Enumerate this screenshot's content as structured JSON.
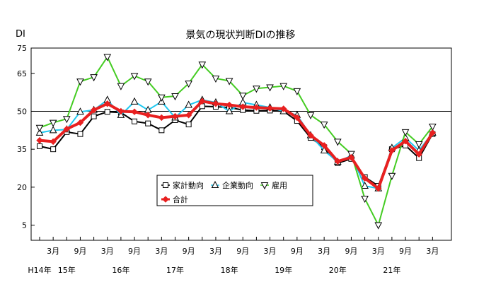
{
  "chart_data": {
    "type": "line",
    "title": "景気の現状判断DIの推移",
    "ylabel": "DI",
    "ylim": [
      -1,
      75
    ],
    "yticks": [
      5,
      20,
      35,
      50,
      65,
      75
    ],
    "reference_line": 50,
    "grid": false,
    "x_count": 30,
    "x_month_labels": [
      {
        "i": 1,
        "text": "3月"
      },
      {
        "i": 3,
        "text": "9月"
      },
      {
        "i": 5,
        "text": "3月"
      },
      {
        "i": 7,
        "text": "9月"
      },
      {
        "i": 9,
        "text": "3月"
      },
      {
        "i": 11,
        "text": "9月"
      },
      {
        "i": 13,
        "text": "3月"
      },
      {
        "i": 15,
        "text": "9月"
      },
      {
        "i": 17,
        "text": "3月"
      },
      {
        "i": 19,
        "text": "9月"
      },
      {
        "i": 21,
        "text": "3月"
      },
      {
        "i": 23,
        "text": "9月"
      },
      {
        "i": 25,
        "text": "3月"
      },
      {
        "i": 27,
        "text": "9月"
      },
      {
        "i": 29,
        "text": "3月"
      }
    ],
    "x_year_labels": [
      {
        "i": 0,
        "text": "H14年"
      },
      {
        "i": 2,
        "text": "15年"
      },
      {
        "i": 6,
        "text": "16年"
      },
      {
        "i": 10,
        "text": "17年"
      },
      {
        "i": 14,
        "text": "18年"
      },
      {
        "i": 18,
        "text": "19年"
      },
      {
        "i": 22,
        "text": "20年"
      },
      {
        "i": 26,
        "text": "21年"
      }
    ],
    "legend_placement": "center",
    "series": [
      {
        "name": "家計動向",
        "color": "#000000",
        "marker": "square",
        "values": [
          36.2,
          35.0,
          41.8,
          41.0,
          48.0,
          49.8,
          49.5,
          46.0,
          45.2,
          42.5,
          46.5,
          44.8,
          52.0,
          51.8,
          51.5,
          50.5,
          50.2,
          50.3,
          50.0,
          46.2,
          39.5,
          35.8,
          29.5,
          31.2,
          24.0,
          20.5,
          35.0,
          36.5,
          31.5,
          41.0
        ]
      },
      {
        "name": "企業動向",
        "color": "#1ec8f0",
        "marker": "triangle-up",
        "values": [
          41.5,
          42.5,
          42.8,
          49.8,
          50.5,
          54.5,
          48.5,
          53.8,
          50.5,
          53.8,
          47.5,
          52.5,
          54.5,
          53.5,
          50.0,
          53.5,
          52.5,
          51.5,
          50.0,
          48.5,
          40.5,
          34.5,
          30.0,
          32.5,
          20.5,
          19.5,
          35.5,
          39.5,
          34.5,
          41.5
        ]
      },
      {
        "name": "雇用",
        "color": "#44cc22",
        "marker": "triangle-down",
        "values": [
          43.5,
          45.5,
          47.0,
          61.8,
          63.5,
          71.5,
          60.0,
          64.0,
          61.8,
          55.5,
          56.0,
          61.0,
          68.5,
          63.0,
          62.0,
          56.2,
          59.0,
          59.5,
          60.0,
          58.0,
          48.5,
          44.8,
          38.0,
          33.2,
          15.5,
          5.0,
          24.5,
          41.8,
          37.0,
          44.0
        ]
      },
      {
        "name": "合計",
        "color": "#e82020",
        "marker": "diamond",
        "values": [
          38.5,
          38.0,
          43.0,
          45.5,
          50.5,
          53.0,
          50.0,
          49.8,
          48.5,
          47.5,
          48.0,
          48.5,
          54.0,
          53.0,
          52.5,
          51.8,
          51.5,
          51.2,
          51.0,
          47.5,
          40.5,
          36.5,
          30.2,
          31.8,
          23.5,
          19.5,
          34.5,
          38.2,
          33.0,
          41.5
        ]
      }
    ]
  }
}
